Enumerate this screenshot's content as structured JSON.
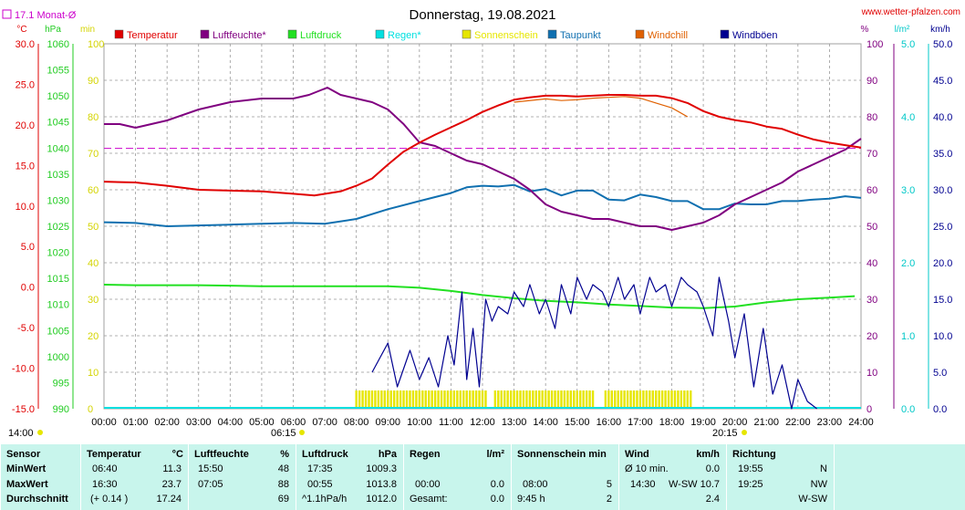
{
  "header": {
    "title": "Donnerstag, 19.08.2021",
    "site": "www.wetter-pfalzen.com",
    "monthly_avg": "17.1 Monat-Ø"
  },
  "axis_units": {
    "temp": "°C",
    "hpa": "hPa",
    "min": "min",
    "pct": "%",
    "rain": "l/m²",
    "wind": "km/h"
  },
  "legend": [
    {
      "label": "Temperatur",
      "color": "#e00000"
    },
    {
      "label": "Luftfeuchte*",
      "color": "#800080"
    },
    {
      "label": "Luftdruck",
      "color": "#22e022"
    },
    {
      "label": "Regen*",
      "color": "#00e0e0"
    },
    {
      "label": "Sonnenschein",
      "color": "#e6e600"
    },
    {
      "label": "Taupunkt",
      "color": "#1070b0"
    },
    {
      "label": "Windchill",
      "color": "#e06000"
    },
    {
      "label": "Windböen",
      "color": "#000090"
    }
  ],
  "sun_labels": {
    "rise": "06:15",
    "set": "20:15",
    "start": "14:00"
  },
  "chart_data": {
    "type": "line",
    "x_ticks": [
      "00:00",
      "01:00",
      "02:00",
      "03:00",
      "04:00",
      "05:00",
      "06:00",
      "07:00",
      "08:00",
      "09:00",
      "10:00",
      "11:00",
      "12:00",
      "13:00",
      "14:00",
      "15:00",
      "16:00",
      "17:00",
      "18:00",
      "19:00",
      "20:00",
      "21:00",
      "22:00",
      "23:00",
      "24:00"
    ],
    "axes": {
      "temp_c": {
        "range": [
          -15,
          30
        ],
        "ticks": [
          "30.0",
          "25.0",
          "20.0",
          "15.0",
          "10.0",
          "5.0",
          "0.0",
          "-5.0",
          "-10.0",
          "-15.0"
        ]
      },
      "pressure_hpa": {
        "range": [
          990,
          1060
        ],
        "ticks": [
          "1060",
          "1055",
          "1050",
          "1045",
          "1040",
          "1035",
          "1030",
          "1025",
          "1020",
          "1015",
          "1010",
          "1005",
          "1000",
          "995",
          "990"
        ]
      },
      "sunshine_min": {
        "range": [
          0,
          100
        ],
        "ticks": [
          "100",
          "90",
          "80",
          "70",
          "60",
          "50",
          "40",
          "30",
          "20",
          "10",
          "0"
        ]
      },
      "humidity_pct": {
        "range": [
          0,
          100
        ],
        "ticks": [
          "100",
          "90",
          "80",
          "70",
          "60",
          "50",
          "40",
          "30",
          "20",
          "10",
          "0"
        ]
      },
      "rain_l_m2": {
        "range": [
          0,
          5
        ],
        "ticks": [
          "5.0",
          "4.0",
          "3.0",
          "2.0",
          "1.0",
          "0.0"
        ]
      },
      "wind_kmh": {
        "range": [
          0,
          50
        ],
        "ticks": [
          "50.0",
          "45.0",
          "40.0",
          "35.0",
          "30.0",
          "25.0",
          "20.0",
          "15.0",
          "10.0",
          "5.0",
          "0.0"
        ]
      }
    },
    "monthly_avg_temp": 17.1,
    "series": [
      {
        "name": "Temperatur",
        "axis": "temp_c",
        "color": "#e00000",
        "x": [
          0,
          1,
          2,
          3,
          4,
          5,
          6,
          6.67,
          7.5,
          8,
          8.5,
          9,
          9.5,
          10,
          10.5,
          11,
          11.5,
          12,
          12.5,
          13,
          13.5,
          14,
          14.5,
          15,
          15.5,
          16,
          16.5,
          17,
          17.5,
          18,
          18.5,
          19,
          19.5,
          20,
          20.5,
          21,
          21.5,
          22,
          22.5,
          23,
          23.5,
          24
        ],
        "y": [
          13.0,
          12.9,
          12.5,
          12.0,
          11.9,
          11.8,
          11.5,
          11.3,
          11.8,
          12.5,
          13.4,
          15.1,
          16.7,
          17.8,
          18.8,
          19.7,
          20.6,
          21.6,
          22.4,
          23.1,
          23.4,
          23.6,
          23.6,
          23.5,
          23.6,
          23.7,
          23.7,
          23.6,
          23.6,
          23.3,
          22.7,
          21.7,
          21.0,
          20.6,
          20.3,
          19.8,
          19.5,
          18.8,
          18.2,
          17.8,
          17.5,
          17.2
        ]
      },
      {
        "name": "Luftfeuchte*",
        "axis": "humidity_pct",
        "color": "#800080",
        "x": [
          0,
          0.5,
          1,
          2,
          3,
          4,
          5,
          6,
          6.5,
          7.08,
          7.5,
          8,
          8.5,
          9,
          9.5,
          10,
          10.5,
          11,
          11.5,
          12,
          12.5,
          13,
          13.5,
          14,
          14.5,
          15,
          15.5,
          16,
          16.5,
          17,
          17.5,
          18,
          18.5,
          19,
          19.5,
          20,
          20.5,
          21,
          21.5,
          22,
          22.5,
          23,
          23.5,
          24
        ],
        "y": [
          78,
          78,
          77,
          79,
          82,
          84,
          85,
          85,
          86,
          88,
          86,
          85,
          84,
          82,
          78,
          73,
          72,
          70,
          68,
          67,
          65,
          63,
          60,
          56,
          54,
          53,
          52,
          52,
          51,
          50,
          50,
          49,
          50,
          51,
          53,
          56,
          58,
          60,
          62,
          65,
          67,
          69,
          71,
          74
        ]
      },
      {
        "name": "Luftdruck",
        "axis": "pressure_hpa",
        "color": "#22e022",
        "x": [
          0,
          1,
          2,
          3,
          4,
          5,
          6,
          7,
          8,
          9,
          10,
          11,
          12,
          13,
          14,
          15,
          16,
          17,
          18,
          19,
          20,
          21,
          22,
          23,
          23.8
        ],
        "y": [
          1013.8,
          1013.7,
          1013.7,
          1013.7,
          1013.6,
          1013.5,
          1013.5,
          1013.5,
          1013.5,
          1013.5,
          1013.2,
          1012.6,
          1011.8,
          1011.2,
          1010.7,
          1010.4,
          1010.0,
          1009.7,
          1009.4,
          1009.3,
          1009.6,
          1010.4,
          1011.0,
          1011.3,
          1011.6
        ]
      },
      {
        "name": "Taupunkt",
        "axis": "temp_c",
        "color": "#1070b0",
        "x": [
          0,
          1,
          2,
          3,
          4,
          5,
          6,
          7,
          8,
          9,
          10,
          11,
          11.5,
          12,
          12.5,
          13,
          13.5,
          14,
          14.5,
          15,
          15.5,
          16,
          16.5,
          17,
          17.5,
          18,
          18.5,
          19,
          19.5,
          20,
          20.5,
          21,
          21.5,
          22,
          22.5,
          23,
          23.5,
          24
        ],
        "y": [
          8.0,
          7.9,
          7.5,
          7.6,
          7.7,
          7.8,
          7.9,
          7.8,
          8.4,
          9.6,
          10.6,
          11.6,
          12.3,
          12.5,
          12.4,
          12.6,
          11.8,
          12.1,
          11.3,
          11.9,
          11.9,
          10.8,
          10.7,
          11.4,
          11.1,
          10.6,
          10.6,
          9.6,
          9.6,
          10.3,
          10.2,
          10.2,
          10.6,
          10.6,
          10.8,
          10.9,
          11.2,
          11.0
        ]
      },
      {
        "name": "Windchill",
        "axis": "temp_c",
        "color": "#e06000",
        "x": [
          13,
          14,
          14.5,
          15,
          15.5,
          16,
          16.5,
          17,
          17.5,
          18,
          18.5
        ],
        "y": [
          22.8,
          23.2,
          23.0,
          23.1,
          23.3,
          23.4,
          23.5,
          23.3,
          22.7,
          22.1,
          21.0
        ]
      },
      {
        "name": "Windböen",
        "axis": "wind_kmh",
        "color": "#000090",
        "x": [
          8.5,
          9.0,
          9.3,
          9.7,
          10.0,
          10.3,
          10.6,
          10.9,
          11.1,
          11.35,
          11.5,
          11.7,
          11.9,
          12.1,
          12.3,
          12.5,
          12.8,
          13.0,
          13.3,
          13.5,
          13.8,
          14.0,
          14.3,
          14.5,
          14.8,
          15.0,
          15.3,
          15.5,
          15.8,
          16.0,
          16.3,
          16.5,
          16.8,
          17.0,
          17.3,
          17.5,
          17.8,
          18.0,
          18.3,
          18.5,
          18.8,
          19.0,
          19.3,
          19.5,
          19.8,
          20.0,
          20.3,
          20.6,
          20.9,
          21.2,
          21.5,
          21.8,
          22.0,
          22.3,
          22.6
        ],
        "y": [
          5,
          9,
          3,
          8,
          4,
          7,
          3,
          10,
          6,
          16,
          4,
          11,
          3,
          15,
          12,
          14,
          13,
          16,
          14,
          17,
          13,
          15,
          11,
          17,
          13,
          18,
          15,
          17,
          16,
          14,
          18,
          15,
          17,
          13,
          18,
          16,
          17,
          14,
          18,
          17,
          16,
          14,
          10,
          18,
          12,
          7,
          13,
          3,
          11,
          2,
          6,
          0,
          4,
          1,
          0
        ]
      }
    ],
    "sunshine_bars": {
      "axis": "sunshine_min",
      "value": 5,
      "color": "#e6e600",
      "intervals": [
        [
          8.0,
          9.75
        ],
        [
          9.8,
          11.4
        ],
        [
          11.5,
          12.15
        ],
        [
          12.4,
          15.5
        ],
        [
          15.9,
          18.6
        ]
      ]
    }
  },
  "stats": {
    "headers": {
      "sensor": "Sensor",
      "temp": "Temperatur",
      "temp_unit": "°C",
      "hum": "Luftfeuchte",
      "hum_unit": "%",
      "pres": "Luftdruck",
      "pres_unit": "hPa",
      "rain": "Regen",
      "rain_unit": "l/m²",
      "sun": "Sonnenschein min",
      "wind": "Wind",
      "wind_unit": "km/h",
      "dir": "Richtung"
    },
    "rows": [
      {
        "label": "MinWert",
        "temp_time": "06:40",
        "temp": "11.3",
        "hum_time": "15:50",
        "hum": "48",
        "pres_time": "17:35",
        "pres": "1009.3",
        "rain_time": "",
        "rain": "",
        "sun_time": "",
        "sun": "",
        "wind_time": "Ø 10 min.",
        "wind": "0.0",
        "dir_time": "19:55",
        "dir": "N"
      },
      {
        "label": "MaxWert",
        "temp_time": "16:30",
        "temp": "23.7",
        "hum_time": "07:05",
        "hum": "88",
        "pres_time": "00:55",
        "pres": "1013.8",
        "rain_time": "00:00",
        "rain": "0.0",
        "sun_time": "08:00",
        "sun": "5",
        "wind_time": "14:30",
        "wind": "W-SW 10.7",
        "dir_time": "19:25",
        "dir": "NW"
      },
      {
        "label": "Durchschnitt",
        "temp_time": "(+ 0.14 )",
        "temp": "17.24",
        "hum_time": "",
        "hum": "69",
        "pres_time": "^1.1hPa/h",
        "pres": "1012.0",
        "rain_time": "Gesamt:",
        "rain": "0.0",
        "sun_time": "9:45 h",
        "sun": "2",
        "wind_time": "",
        "wind": "2.4",
        "dir_time": "",
        "dir": "W-SW"
      }
    ]
  }
}
